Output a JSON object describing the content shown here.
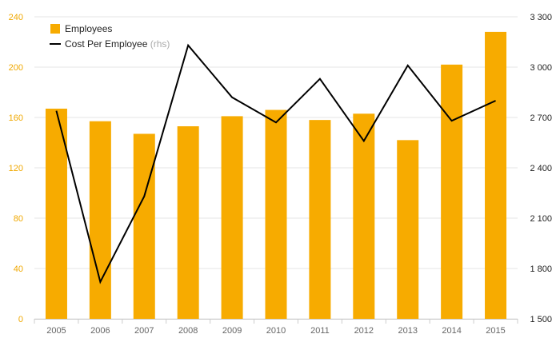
{
  "chart_data": {
    "type": "bar+line",
    "title": "",
    "categories": [
      "2005",
      "2006",
      "2007",
      "2008",
      "2009",
      "2010",
      "2011",
      "2012",
      "2013",
      "2014",
      "2015"
    ],
    "series": [
      {
        "name": "Employees",
        "type": "bar",
        "axis": "left",
        "color": "#f7ab00",
        "values": [
          167,
          157,
          147,
          153,
          161,
          166,
          158,
          163,
          142,
          202,
          228
        ]
      },
      {
        "name": "Cost Per Employee",
        "type": "line",
        "axis": "right",
        "color": "#000000",
        "values": [
          2740,
          1720,
          2230,
          3130,
          2820,
          2670,
          2930,
          2560,
          3010,
          2680,
          2800
        ]
      }
    ],
    "legend": {
      "position": "top-left",
      "items": [
        {
          "label": "Employees",
          "note": ""
        },
        {
          "label": "Cost Per Employee",
          "note": "(rhs)"
        }
      ]
    },
    "y_left": {
      "ylim": [
        0,
        240
      ],
      "ticks": [
        0,
        40,
        80,
        120,
        160,
        200,
        240
      ],
      "tick_labels": [
        "0",
        "40",
        "80",
        "120",
        "160",
        "200",
        "240"
      ],
      "label_color": "#f0a800"
    },
    "y_right": {
      "ylim": [
        1500,
        3300
      ],
      "ticks": [
        1500,
        1800,
        2100,
        2400,
        2700,
        3000,
        3300
      ],
      "tick_labels": [
        "1 500",
        "1 800",
        "2 100",
        "2 400",
        "2 700",
        "3 000",
        "3 300"
      ]
    },
    "grid": true
  }
}
